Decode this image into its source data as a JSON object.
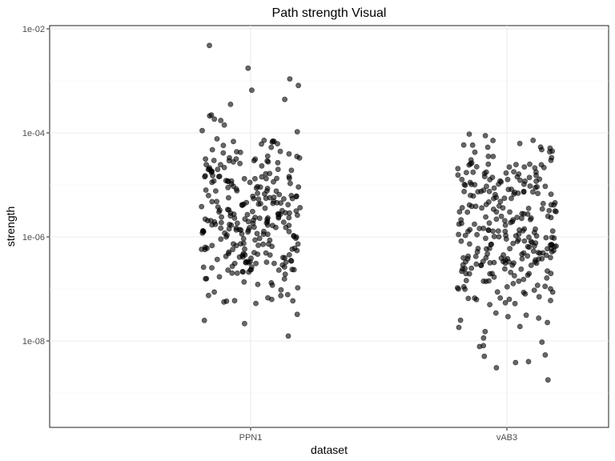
{
  "chart_data": {
    "type": "scatter",
    "title": "Path strength Visual",
    "xlabel": "dataset",
    "ylabel": "strength",
    "categories": [
      "PPN1",
      "vAB3"
    ],
    "y_scale": "log10",
    "ylim": [
      4e-10,
      0.015
    ],
    "y_ticks": [
      {
        "value": 0.01,
        "label": "1e-02"
      },
      {
        "value": 0.0001,
        "label": "1e-04"
      },
      {
        "value": 1e-06,
        "label": "1e-06"
      },
      {
        "value": 1e-08,
        "label": "1e-08"
      }
    ],
    "grid": true,
    "legend": "none",
    "point_color": "#000000",
    "series": [
      {
        "category": "PPN1",
        "n_points": 300,
        "log10_center": -5.6,
        "log10_spread": 0.95,
        "log10_min": -9.0,
        "log10_max": -2.3
      },
      {
        "category": "vAB3",
        "n_points": 300,
        "log10_center": -6.0,
        "log10_spread": 0.95,
        "log10_min": -9.35,
        "log10_max": -4.0
      }
    ]
  }
}
